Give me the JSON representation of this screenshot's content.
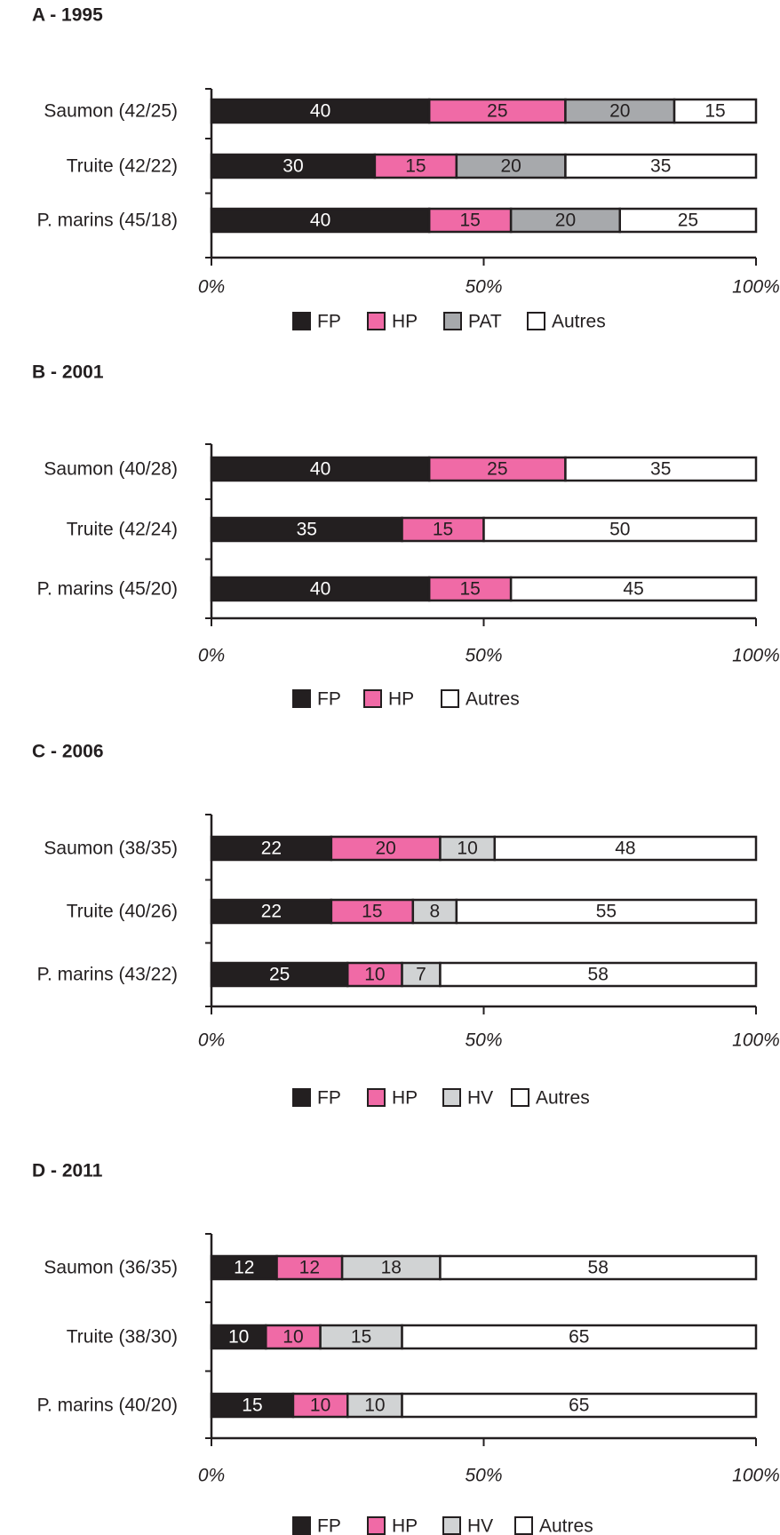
{
  "chart_data": [
    {
      "type": "bar",
      "stacked": true,
      "orientation": "horizontal",
      "title": "A - 1995",
      "categories": [
        "Saumon (42/25)",
        "Truite (42/22)",
        "P. marins (45/18)"
      ],
      "series": [
        {
          "name": "FP",
          "values": [
            40,
            30,
            40
          ],
          "color": "#231f20"
        },
        {
          "name": "HP",
          "values": [
            25,
            15,
            15
          ],
          "color": "#f06aa6"
        },
        {
          "name": "PAT",
          "values": [
            20,
            20,
            20
          ],
          "color": "#a7a9ac"
        },
        {
          "name": "Autres",
          "values": [
            15,
            35,
            25
          ],
          "color": "#ffffff"
        }
      ],
      "xticks": [
        "0%",
        "50%",
        "100%"
      ],
      "xlim": [
        0,
        100
      ],
      "legend": "bottom"
    },
    {
      "type": "bar",
      "stacked": true,
      "orientation": "horizontal",
      "title": "B - 2001",
      "categories": [
        "Saumon (40/28)",
        "Truite (42/24)",
        "P. marins (45/20)"
      ],
      "series": [
        {
          "name": "FP",
          "values": [
            40,
            35,
            40
          ],
          "color": "#231f20"
        },
        {
          "name": "HP",
          "values": [
            25,
            15,
            15
          ],
          "color": "#f06aa6"
        },
        {
          "name": "Autres",
          "values": [
            35,
            50,
            45
          ],
          "color": "#ffffff"
        }
      ],
      "xticks": [
        "0%",
        "50%",
        "100%"
      ],
      "xlim": [
        0,
        100
      ],
      "legend": "bottom"
    },
    {
      "type": "bar",
      "stacked": true,
      "orientation": "horizontal",
      "title": "C - 2006",
      "categories": [
        "Saumon (38/35)",
        "Truite (40/26)",
        "P. marins (43/22)"
      ],
      "series": [
        {
          "name": "FP",
          "values": [
            22,
            22,
            25
          ],
          "color": "#231f20"
        },
        {
          "name": "HP",
          "values": [
            20,
            15,
            10
          ],
          "color": "#f06aa6"
        },
        {
          "name": "HV",
          "values": [
            10,
            8,
            7
          ],
          "color": "#d1d3d4"
        },
        {
          "name": "Autres",
          "values": [
            48,
            55,
            58
          ],
          "color": "#ffffff"
        }
      ],
      "xticks": [
        "0%",
        "50%",
        "100%"
      ],
      "xlim": [
        0,
        100
      ],
      "legend": "bottom"
    },
    {
      "type": "bar",
      "stacked": true,
      "orientation": "horizontal",
      "title": "D - 2011",
      "categories": [
        "Saumon (36/35)",
        "Truite (38/30)",
        "P. marins (40/20)"
      ],
      "series": [
        {
          "name": "FP",
          "values": [
            12,
            10,
            15
          ],
          "color": "#231f20"
        },
        {
          "name": "HP",
          "values": [
            12,
            10,
            10
          ],
          "color": "#f06aa6"
        },
        {
          "name": "HV",
          "values": [
            18,
            15,
            10
          ],
          "color": "#d1d3d4"
        },
        {
          "name": "Autres",
          "values": [
            58,
            65,
            65
          ],
          "color": "#ffffff"
        }
      ],
      "xticks": [
        "0%",
        "50%",
        "100%"
      ],
      "xlim": [
        0,
        100
      ],
      "legend": "bottom"
    }
  ]
}
